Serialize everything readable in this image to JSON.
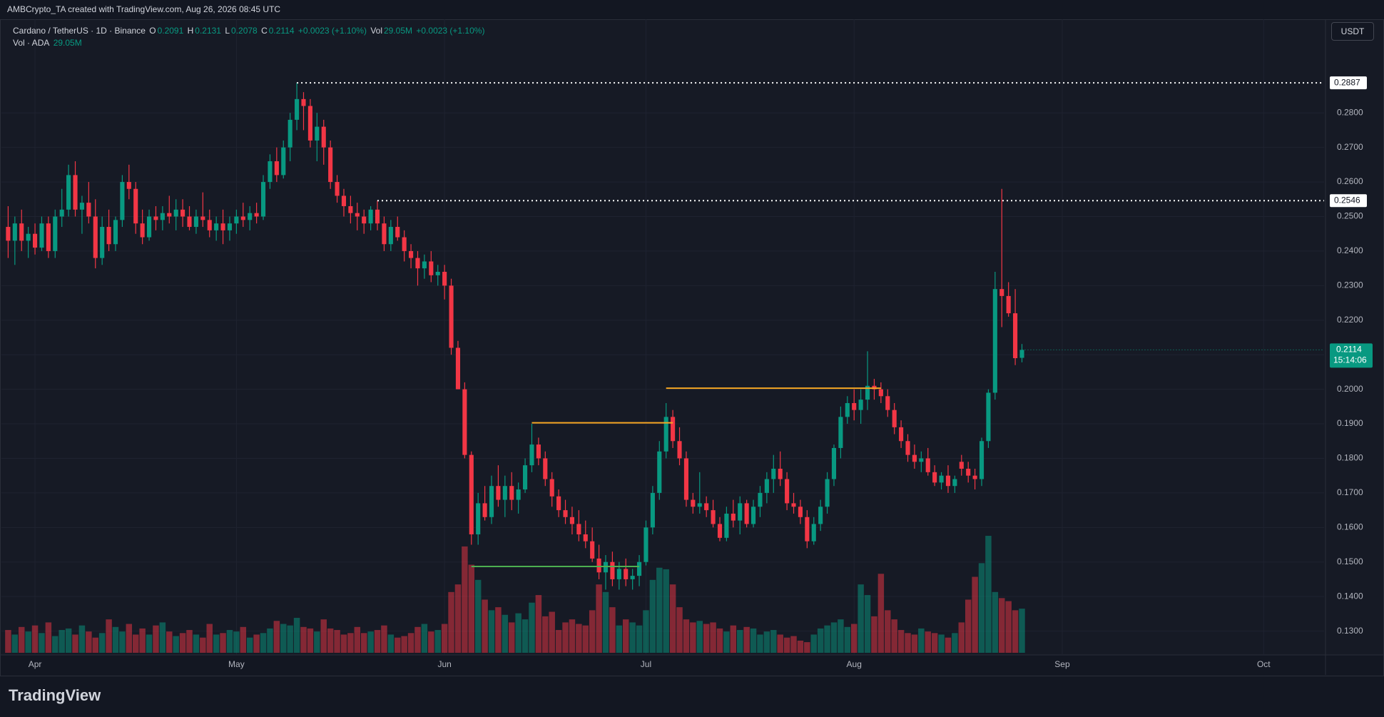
{
  "header": {
    "attribution": "AMBCrypto_TA created with TradingView.com, Aug 26, 2026 08:45 UTC",
    "brand": "TradingView",
    "currency_button": "USDT"
  },
  "chart_data": {
    "type": "candlestick",
    "title": "Cardano / TetherUS · 1D · Binance",
    "readout_labels": [
      "O",
      "H",
      "L",
      "C"
    ],
    "change": "+0.0023 (+1.10%)",
    "volume_title": "Vol",
    "volume_series_title": "Vol · ADA",
    "volume_label": "29.05M",
    "countdown": "15:14:06",
    "up_color": "#089981",
    "down_color": "#f23645",
    "volume_up_color": "rgba(8,153,129,0.5)",
    "volume_down_color": "rgba(242,54,69,0.5)",
    "grid": true,
    "xlim": [
      -1,
      196
    ],
    "xticks": [
      {
        "value": 4,
        "label": "Apr"
      },
      {
        "value": 34,
        "label": "May"
      },
      {
        "value": 65,
        "label": "Jun"
      },
      {
        "value": 95,
        "label": "Jul"
      },
      {
        "value": 126,
        "label": "Aug"
      },
      {
        "value": 157,
        "label": "Sep"
      },
      {
        "value": 187,
        "label": "Oct"
      }
    ],
    "ylim": [
      0.1231,
      0.3071
    ],
    "yticks": [
      {
        "value": 0.13,
        "label": "0.1300"
      },
      {
        "value": 0.14,
        "label": "0.1400"
      },
      {
        "value": 0.15,
        "label": "0.1500"
      },
      {
        "value": 0.16,
        "label": "0.1600"
      },
      {
        "value": 0.17,
        "label": "0.1700"
      },
      {
        "value": 0.18,
        "label": "0.1800"
      },
      {
        "value": 0.19,
        "label": "0.1900"
      },
      {
        "value": 0.2,
        "label": "0.2000"
      },
      {
        "value": 0.21,
        "label": "0.2100"
      },
      {
        "value": 0.22,
        "label": "0.2200"
      },
      {
        "value": 0.23,
        "label": "0.2300"
      },
      {
        "value": 0.24,
        "label": "0.2400"
      },
      {
        "value": 0.25,
        "label": "0.2500"
      },
      {
        "value": 0.26,
        "label": "0.2600"
      },
      {
        "value": 0.27,
        "label": "0.2700"
      },
      {
        "value": 0.28,
        "label": "0.2800"
      }
    ],
    "vlim": [
      0,
      85
    ],
    "levels": [
      {
        "value": 0.2887,
        "start": 43,
        "extend": true,
        "color": "#ffffff",
        "dashed": true,
        "label": true
      },
      {
        "value": 0.2546,
        "start": 55,
        "extend": true,
        "color": "#ffffff",
        "dashed": true,
        "label": true
      },
      {
        "value": 0.1903,
        "start": 78,
        "end": 99,
        "color": "#f5a623",
        "dashed": false,
        "label": false
      },
      {
        "value": 0.2003,
        "start": 98,
        "end": 130,
        "color": "#f5a623",
        "dashed": false,
        "label": false
      },
      {
        "value": 0.1487,
        "start": 69,
        "end": 94,
        "color": "#4caf50",
        "dashed": false,
        "label": false
      }
    ],
    "ohlc": [
      [
        0.247,
        0.253,
        0.238,
        0.243
      ],
      [
        0.243,
        0.25,
        0.236,
        0.248
      ],
      [
        0.248,
        0.252,
        0.24,
        0.243
      ],
      [
        0.243,
        0.247,
        0.238,
        0.245
      ],
      [
        0.245,
        0.248,
        0.239,
        0.241
      ],
      [
        0.241,
        0.25,
        0.24,
        0.248
      ],
      [
        0.248,
        0.25,
        0.238,
        0.24
      ],
      [
        0.24,
        0.252,
        0.238,
        0.25
      ],
      [
        0.25,
        0.258,
        0.247,
        0.252
      ],
      [
        0.252,
        0.265,
        0.25,
        0.262
      ],
      [
        0.262,
        0.266,
        0.25,
        0.252
      ],
      [
        0.252,
        0.256,
        0.245,
        0.254
      ],
      [
        0.254,
        0.26,
        0.248,
        0.25
      ],
      [
        0.25,
        0.255,
        0.235,
        0.238
      ],
      [
        0.238,
        0.25,
        0.236,
        0.247
      ],
      [
        0.247,
        0.252,
        0.24,
        0.242
      ],
      [
        0.242,
        0.25,
        0.24,
        0.249
      ],
      [
        0.249,
        0.262,
        0.247,
        0.26
      ],
      [
        0.26,
        0.265,
        0.255,
        0.258
      ],
      [
        0.258,
        0.26,
        0.245,
        0.248
      ],
      [
        0.248,
        0.252,
        0.242,
        0.244
      ],
      [
        0.244,
        0.252,
        0.243,
        0.25
      ],
      [
        0.25,
        0.253,
        0.246,
        0.249
      ],
      [
        0.249,
        0.253,
        0.246,
        0.251
      ],
      [
        0.251,
        0.256,
        0.248,
        0.25
      ],
      [
        0.25,
        0.255,
        0.246,
        0.252
      ],
      [
        0.252,
        0.255,
        0.247,
        0.25
      ],
      [
        0.25,
        0.253,
        0.246,
        0.247
      ],
      [
        0.247,
        0.252,
        0.245,
        0.25
      ],
      [
        0.25,
        0.257,
        0.247,
        0.249
      ],
      [
        0.249,
        0.252,
        0.244,
        0.246
      ],
      [
        0.246,
        0.25,
        0.243,
        0.248
      ],
      [
        0.248,
        0.252,
        0.242,
        0.246
      ],
      [
        0.246,
        0.25,
        0.243,
        0.248
      ],
      [
        0.248,
        0.252,
        0.245,
        0.25
      ],
      [
        0.25,
        0.254,
        0.247,
        0.249
      ],
      [
        0.249,
        0.253,
        0.246,
        0.251
      ],
      [
        0.251,
        0.254,
        0.248,
        0.25
      ],
      [
        0.25,
        0.262,
        0.249,
        0.26
      ],
      [
        0.26,
        0.268,
        0.258,
        0.266
      ],
      [
        0.266,
        0.27,
        0.26,
        0.262
      ],
      [
        0.262,
        0.272,
        0.261,
        0.27
      ],
      [
        0.27,
        0.28,
        0.266,
        0.278
      ],
      [
        0.278,
        0.2887,
        0.275,
        0.284
      ],
      [
        0.284,
        0.286,
        0.275,
        0.282
      ],
      [
        0.282,
        0.284,
        0.27,
        0.272
      ],
      [
        0.272,
        0.28,
        0.266,
        0.276
      ],
      [
        0.276,
        0.278,
        0.265,
        0.27
      ],
      [
        0.27,
        0.272,
        0.258,
        0.26
      ],
      [
        0.26,
        0.262,
        0.254,
        0.256
      ],
      [
        0.256,
        0.258,
        0.25,
        0.253
      ],
      [
        0.253,
        0.256,
        0.248,
        0.251
      ],
      [
        0.251,
        0.254,
        0.246,
        0.25
      ],
      [
        0.25,
        0.252,
        0.245,
        0.248
      ],
      [
        0.248,
        0.253,
        0.246,
        0.252
      ],
      [
        0.252,
        0.2546,
        0.246,
        0.248
      ],
      [
        0.248,
        0.25,
        0.24,
        0.242
      ],
      [
        0.242,
        0.249,
        0.24,
        0.247
      ],
      [
        0.247,
        0.25,
        0.243,
        0.244
      ],
      [
        0.244,
        0.246,
        0.237,
        0.24
      ],
      [
        0.24,
        0.242,
        0.235,
        0.238
      ],
      [
        0.238,
        0.24,
        0.23,
        0.235
      ],
      [
        0.235,
        0.239,
        0.232,
        0.237
      ],
      [
        0.237,
        0.24,
        0.231,
        0.233
      ],
      [
        0.233,
        0.236,
        0.23,
        0.234
      ],
      [
        0.234,
        0.236,
        0.226,
        0.23
      ],
      [
        0.23,
        0.232,
        0.21,
        0.212
      ],
      [
        0.212,
        0.214,
        0.2,
        0.2
      ],
      [
        0.2,
        0.202,
        0.18,
        0.181
      ],
      [
        0.181,
        0.182,
        0.155,
        0.158
      ],
      [
        0.158,
        0.17,
        0.155,
        0.167
      ],
      [
        0.167,
        0.172,
        0.162,
        0.163
      ],
      [
        0.163,
        0.175,
        0.161,
        0.172
      ],
      [
        0.172,
        0.178,
        0.166,
        0.168
      ],
      [
        0.168,
        0.175,
        0.163,
        0.172
      ],
      [
        0.172,
        0.176,
        0.165,
        0.168
      ],
      [
        0.168,
        0.173,
        0.164,
        0.171
      ],
      [
        0.171,
        0.18,
        0.17,
        0.178
      ],
      [
        0.178,
        0.19,
        0.176,
        0.184
      ],
      [
        0.184,
        0.186,
        0.178,
        0.18
      ],
      [
        0.18,
        0.182,
        0.172,
        0.174
      ],
      [
        0.174,
        0.176,
        0.166,
        0.169
      ],
      [
        0.169,
        0.171,
        0.163,
        0.165
      ],
      [
        0.165,
        0.168,
        0.161,
        0.163
      ],
      [
        0.163,
        0.166,
        0.158,
        0.161
      ],
      [
        0.161,
        0.165,
        0.156,
        0.158
      ],
      [
        0.158,
        0.162,
        0.154,
        0.156
      ],
      [
        0.156,
        0.16,
        0.15,
        0.151
      ],
      [
        0.151,
        0.155,
        0.145,
        0.147
      ],
      [
        0.147,
        0.152,
        0.142,
        0.15
      ],
      [
        0.15,
        0.153,
        0.143,
        0.145
      ],
      [
        0.145,
        0.15,
        0.142,
        0.148
      ],
      [
        0.148,
        0.151,
        0.143,
        0.145
      ],
      [
        0.145,
        0.148,
        0.142,
        0.146
      ],
      [
        0.146,
        0.152,
        0.143,
        0.15
      ],
      [
        0.15,
        0.162,
        0.149,
        0.16
      ],
      [
        0.16,
        0.172,
        0.158,
        0.17
      ],
      [
        0.17,
        0.185,
        0.168,
        0.182
      ],
      [
        0.182,
        0.196,
        0.18,
        0.192
      ],
      [
        0.192,
        0.194,
        0.183,
        0.185
      ],
      [
        0.185,
        0.189,
        0.178,
        0.18
      ],
      [
        0.18,
        0.182,
        0.166,
        0.168
      ],
      [
        0.168,
        0.17,
        0.164,
        0.166
      ],
      [
        0.166,
        0.176,
        0.164,
        0.167
      ],
      [
        0.167,
        0.169,
        0.163,
        0.165
      ],
      [
        0.165,
        0.168,
        0.16,
        0.161
      ],
      [
        0.161,
        0.163,
        0.156,
        0.157
      ],
      [
        0.157,
        0.166,
        0.156,
        0.164
      ],
      [
        0.164,
        0.168,
        0.16,
        0.162
      ],
      [
        0.162,
        0.169,
        0.158,
        0.167
      ],
      [
        0.167,
        0.168,
        0.16,
        0.161
      ],
      [
        0.161,
        0.168,
        0.16,
        0.166
      ],
      [
        0.166,
        0.172,
        0.163,
        0.17
      ],
      [
        0.17,
        0.176,
        0.167,
        0.174
      ],
      [
        0.174,
        0.181,
        0.17,
        0.177
      ],
      [
        0.177,
        0.182,
        0.172,
        0.174
      ],
      [
        0.174,
        0.176,
        0.165,
        0.167
      ],
      [
        0.167,
        0.17,
        0.164,
        0.166
      ],
      [
        0.166,
        0.168,
        0.161,
        0.163
      ],
      [
        0.163,
        0.165,
        0.154,
        0.156
      ],
      [
        0.156,
        0.163,
        0.155,
        0.161
      ],
      [
        0.161,
        0.168,
        0.159,
        0.166
      ],
      [
        0.166,
        0.176,
        0.164,
        0.174
      ],
      [
        0.174,
        0.184,
        0.172,
        0.183
      ],
      [
        0.183,
        0.195,
        0.18,
        0.192
      ],
      [
        0.192,
        0.198,
        0.19,
        0.196
      ],
      [
        0.196,
        0.2,
        0.191,
        0.194
      ],
      [
        0.194,
        0.2,
        0.19,
        0.197
      ],
      [
        0.197,
        0.211,
        0.194,
        0.201
      ],
      [
        0.201,
        0.203,
        0.197,
        0.2
      ],
      [
        0.2,
        0.202,
        0.196,
        0.198
      ],
      [
        0.198,
        0.2,
        0.192,
        0.194
      ],
      [
        0.194,
        0.196,
        0.187,
        0.189
      ],
      [
        0.189,
        0.191,
        0.183,
        0.185
      ],
      [
        0.185,
        0.187,
        0.179,
        0.181
      ],
      [
        0.181,
        0.184,
        0.177,
        0.179
      ],
      [
        0.179,
        0.182,
        0.176,
        0.18
      ],
      [
        0.18,
        0.183,
        0.175,
        0.176
      ],
      [
        0.176,
        0.178,
        0.172,
        0.173
      ],
      [
        0.173,
        0.176,
        0.171,
        0.175
      ],
      [
        0.175,
        0.178,
        0.17,
        0.172
      ],
      [
        0.172,
        0.175,
        0.17,
        0.174
      ],
      [
        0.179,
        0.181,
        0.175,
        0.177
      ],
      [
        0.177,
        0.179,
        0.173,
        0.175
      ],
      [
        0.175,
        0.177,
        0.171,
        0.174
      ],
      [
        0.174,
        0.186,
        0.172,
        0.185
      ],
      [
        0.185,
        0.2,
        0.183,
        0.199
      ],
      [
        0.199,
        0.234,
        0.197,
        0.229
      ],
      [
        0.229,
        0.258,
        0.218,
        0.227
      ],
      [
        0.227,
        0.231,
        0.221,
        0.222
      ],
      [
        0.222,
        0.229,
        0.207,
        0.209
      ],
      [
        0.2091,
        0.2131,
        0.2078,
        0.2114
      ]
    ],
    "volume": [
      15,
      12,
      17,
      14,
      18,
      13,
      20,
      11,
      15,
      16,
      12,
      18,
      14,
      10,
      13,
      22,
      17,
      14,
      19,
      12,
      16,
      12,
      18,
      20,
      14,
      11,
      13,
      15,
      12,
      10,
      19,
      12,
      13,
      15,
      14,
      17,
      10,
      12,
      13,
      16,
      21,
      19,
      18,
      23,
      17,
      16,
      14,
      22,
      16,
      15,
      12,
      13,
      17,
      13,
      14,
      15,
      18,
      12,
      10,
      11,
      13,
      17,
      19,
      14,
      15,
      19,
      40,
      45,
      70,
      58,
      48,
      35,
      28,
      30,
      25,
      20,
      26,
      22,
      33,
      38,
      24,
      27,
      15,
      20,
      22,
      19,
      18,
      28,
      45,
      40,
      30,
      18,
      22,
      20,
      18,
      28,
      48,
      56,
      55,
      45,
      30,
      22,
      20,
      21,
      19,
      20,
      16,
      14,
      18,
      15,
      17,
      16,
      12,
      14,
      15,
      12,
      10,
      11,
      8,
      7,
      12,
      16,
      18,
      20,
      22,
      17,
      19,
      45,
      38,
      24,
      52,
      28,
      22,
      15,
      13,
      12,
      16,
      14,
      13,
      12,
      10,
      13,
      20,
      35,
      50,
      59,
      77,
      40,
      36,
      34,
      28,
      29.05
    ]
  }
}
